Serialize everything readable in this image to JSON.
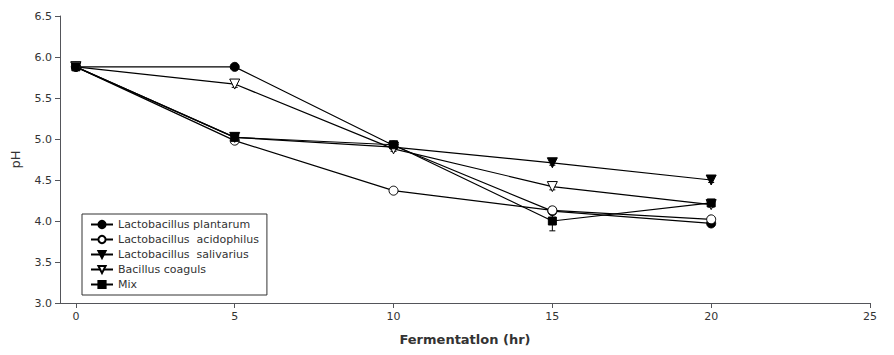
{
  "chart_data": {
    "type": "line",
    "x": [
      0,
      5,
      10,
      15,
      20
    ],
    "series": [
      {
        "name": "Lactobacillus plantarum",
        "color": "black",
        "marker": "circle_filled",
        "values": [
          5.88,
          5.88,
          4.92,
          4.12,
          3.97
        ],
        "yerr": [
          0.02,
          0.02,
          0.03,
          0.04,
          0.03
        ]
      },
      {
        "name": "Lactobacillus  acidophilus",
        "color": "black",
        "marker": "circle_open",
        "values": [
          5.88,
          4.98,
          4.37,
          4.13,
          4.02
        ],
        "yerr": [
          0.02,
          0.03,
          0.03,
          0.04,
          0.03
        ]
      },
      {
        "name": "Lactobacillus  salivarius",
        "color": "black",
        "marker": "triangle_down_filled",
        "values": [
          5.88,
          5.02,
          4.9,
          4.71,
          4.5
        ],
        "yerr": [
          0.02,
          0.03,
          0.03,
          0.03,
          0.03
        ]
      },
      {
        "name": "Bacillus coaguls",
        "color": "black",
        "marker": "triangle_down_open",
        "values": [
          5.88,
          5.67,
          4.88,
          4.42,
          4.2
        ],
        "yerr": [
          0.02,
          0.04,
          0.03,
          0.04,
          0.03
        ]
      },
      {
        "name": "Mix",
        "color": "black",
        "marker": "square_filled",
        "values": [
          5.88,
          5.02,
          4.93,
          4.0,
          4.22
        ],
        "yerr": [
          0.02,
          0.03,
          0.03,
          0.12,
          0.03
        ]
      }
    ],
    "xlabel": "Fermentatlon (hr)",
    "ylabel": "pH",
    "xlim": [
      -0.5,
      25
    ],
    "ylim": [
      3.0,
      6.5
    ],
    "xticks": [
      0,
      5,
      10,
      15,
      20,
      25
    ],
    "yticks": [
      {
        "value": 3,
        "label": "3.0"
      },
      3.5,
      {
        "value": 4,
        "label": "4.0"
      },
      4.5,
      {
        "value": 5,
        "label": "5.0"
      },
      5.5,
      {
        "value": 6,
        "label": "6.0"
      },
      6.5
    ],
    "grid": false,
    "legend": "lower left"
  }
}
